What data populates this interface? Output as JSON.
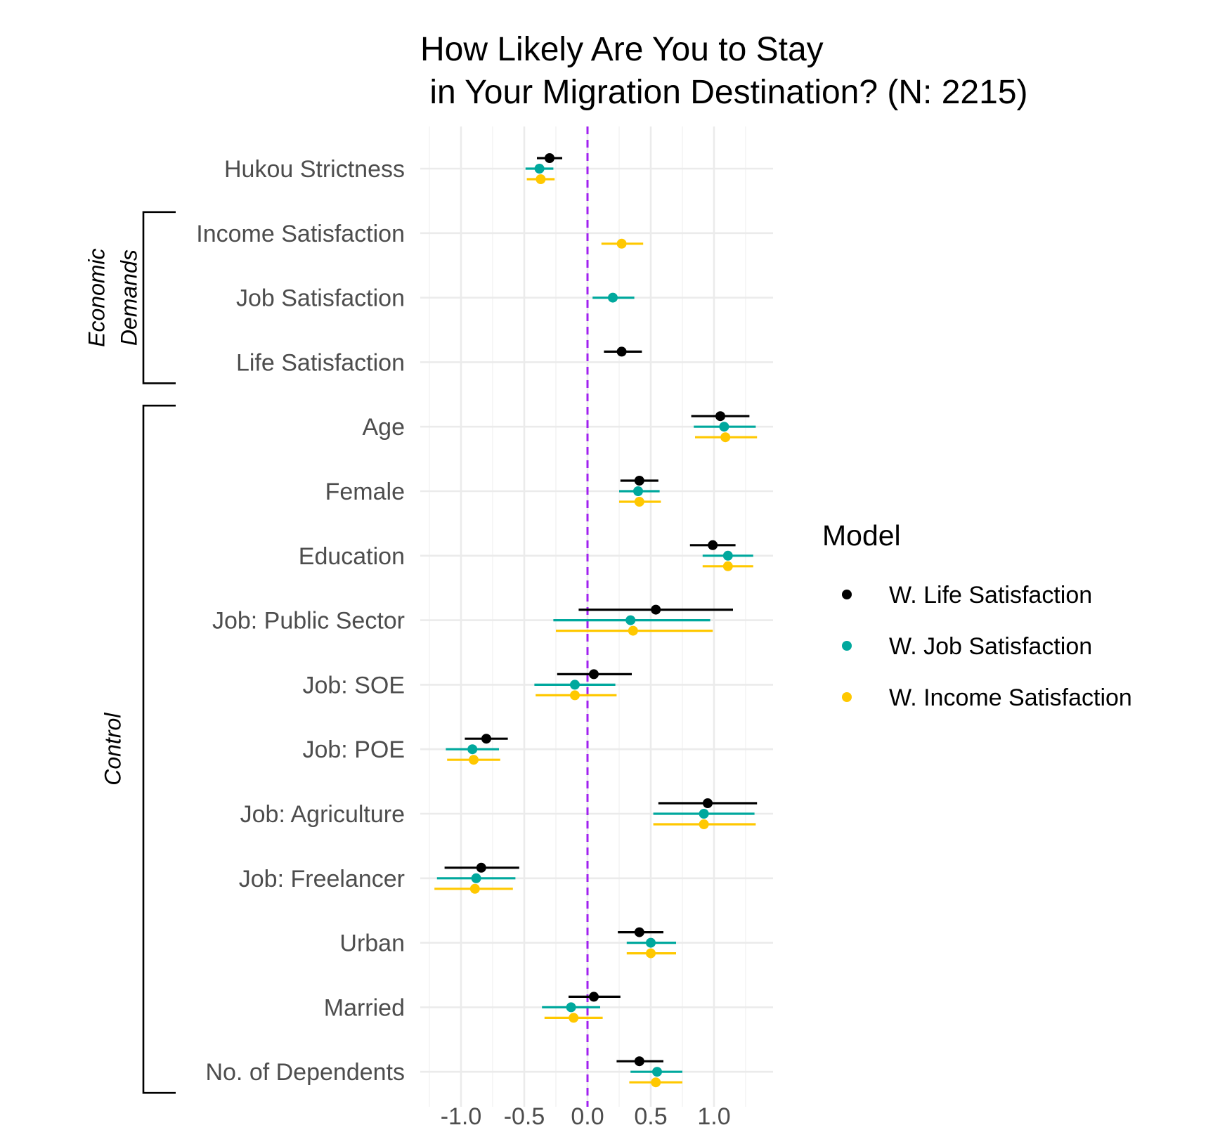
{
  "chart_data": {
    "type": "scatter",
    "subtype": "coefficient-plot",
    "title_lines": [
      "How Likely Are You to Stay",
      " in Your Migration Destination? (N: 2215)"
    ],
    "xlabel": "",
    "ylabel": "",
    "xlim": [
      -1.25,
      1.47
    ],
    "x_ticks": [
      -1.0,
      -0.5,
      0.0,
      0.5,
      1.0
    ],
    "x_tick_labels": [
      "-1.0",
      "-0.5",
      "0.0",
      "0.5",
      "1.0"
    ],
    "reference_line": {
      "x": 0,
      "color": "#a020f0",
      "style": "dashed"
    },
    "grid": true,
    "legend": {
      "title": "Model",
      "position": "right",
      "entries": [
        {
          "label": "W. Life Satisfaction",
          "color": "#000000"
        },
        {
          "label": "W. Job Satisfaction",
          "color": "#00a89d"
        },
        {
          "label": "W. Income Satisfaction",
          "color": "#ffc800"
        }
      ]
    },
    "groups": [
      {
        "label_lines": [
          "Economic",
          "Demands"
        ],
        "terms": [
          "Income Satisfaction",
          "Job Satisfaction",
          "Life Satisfaction"
        ]
      },
      {
        "label_lines": [
          "Control"
        ],
        "terms": [
          "Age",
          "Female",
          "Education",
          "Job: Public Sector",
          "Job: SOE",
          "Job: POE",
          "Job: Agriculture",
          "Job: Freelancer",
          "Urban",
          "Married",
          "No. of Dependents"
        ]
      }
    ],
    "terms": [
      {
        "label": "Hukou Strictness",
        "series": [
          {
            "est": -0.3,
            "lo": -0.4,
            "hi": -0.2
          },
          {
            "est": -0.38,
            "lo": -0.49,
            "hi": -0.27
          },
          {
            "est": -0.37,
            "lo": -0.48,
            "hi": -0.26
          }
        ]
      },
      {
        "label": "Income Satisfaction",
        "series": [
          null,
          null,
          {
            "est": 0.27,
            "lo": 0.11,
            "hi": 0.44
          }
        ]
      },
      {
        "label": "Job Satisfaction",
        "series": [
          null,
          {
            "est": 0.2,
            "lo": 0.04,
            "hi": 0.37
          },
          null
        ]
      },
      {
        "label": "Life Satisfaction",
        "series": [
          {
            "est": 0.27,
            "lo": 0.13,
            "hi": 0.43
          },
          null,
          null
        ]
      },
      {
        "label": "Age",
        "series": [
          {
            "est": 1.05,
            "lo": 0.82,
            "hi": 1.28
          },
          {
            "est": 1.08,
            "lo": 0.84,
            "hi": 1.33
          },
          {
            "est": 1.09,
            "lo": 0.85,
            "hi": 1.34
          }
        ]
      },
      {
        "label": "Female",
        "series": [
          {
            "est": 0.41,
            "lo": 0.26,
            "hi": 0.56
          },
          {
            "est": 0.4,
            "lo": 0.25,
            "hi": 0.57
          },
          {
            "est": 0.41,
            "lo": 0.25,
            "hi": 0.58
          }
        ]
      },
      {
        "label": "Education",
        "series": [
          {
            "est": 0.99,
            "lo": 0.81,
            "hi": 1.17
          },
          {
            "est": 1.11,
            "lo": 0.91,
            "hi": 1.31
          },
          {
            "est": 1.11,
            "lo": 0.91,
            "hi": 1.31
          }
        ]
      },
      {
        "label": "Job: Public Sector",
        "series": [
          {
            "est": 0.54,
            "lo": -0.07,
            "hi": 1.15
          },
          {
            "est": 0.34,
            "lo": -0.27,
            "hi": 0.97
          },
          {
            "est": 0.36,
            "lo": -0.25,
            "hi": 0.99
          }
        ]
      },
      {
        "label": "Job: SOE",
        "series": [
          {
            "est": 0.05,
            "lo": -0.24,
            "hi": 0.35
          },
          {
            "est": -0.1,
            "lo": -0.42,
            "hi": 0.22
          },
          {
            "est": -0.1,
            "lo": -0.41,
            "hi": 0.23
          }
        ]
      },
      {
        "label": "Job: POE",
        "series": [
          {
            "est": -0.8,
            "lo": -0.97,
            "hi": -0.63
          },
          {
            "est": -0.91,
            "lo": -1.12,
            "hi": -0.7
          },
          {
            "est": -0.9,
            "lo": -1.11,
            "hi": -0.69
          }
        ]
      },
      {
        "label": "Job: Agriculture",
        "series": [
          {
            "est": 0.95,
            "lo": 0.56,
            "hi": 1.34
          },
          {
            "est": 0.92,
            "lo": 0.52,
            "hi": 1.32
          },
          {
            "est": 0.92,
            "lo": 0.52,
            "hi": 1.33
          }
        ]
      },
      {
        "label": "Job: Freelancer",
        "series": [
          {
            "est": -0.84,
            "lo": -1.13,
            "hi": -0.54
          },
          {
            "est": -0.88,
            "lo": -1.19,
            "hi": -0.57
          },
          {
            "est": -0.89,
            "lo": -1.21,
            "hi": -0.59
          }
        ]
      },
      {
        "label": "Urban",
        "series": [
          {
            "est": 0.41,
            "lo": 0.24,
            "hi": 0.6
          },
          {
            "est": 0.5,
            "lo": 0.31,
            "hi": 0.7
          },
          {
            "est": 0.5,
            "lo": 0.31,
            "hi": 0.7
          }
        ]
      },
      {
        "label": "Married",
        "series": [
          {
            "est": 0.05,
            "lo": -0.15,
            "hi": 0.26
          },
          {
            "est": -0.13,
            "lo": -0.36,
            "hi": 0.1
          },
          {
            "est": -0.11,
            "lo": -0.34,
            "hi": 0.12
          }
        ]
      },
      {
        "label": "No. of Dependents",
        "series": [
          {
            "est": 0.41,
            "lo": 0.23,
            "hi": 0.6
          },
          {
            "est": 0.55,
            "lo": 0.34,
            "hi": 0.75
          },
          {
            "est": 0.54,
            "lo": 0.33,
            "hi": 0.75
          }
        ]
      }
    ]
  }
}
